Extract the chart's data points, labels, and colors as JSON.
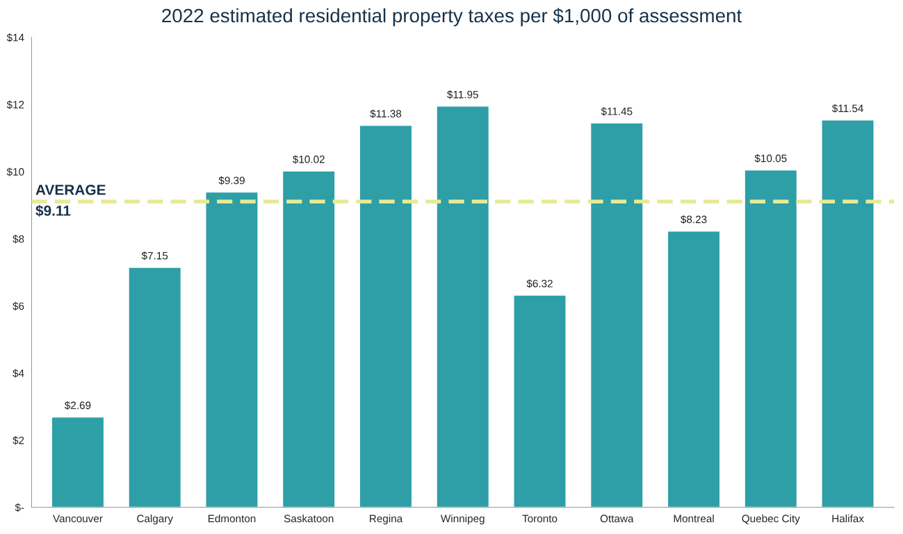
{
  "chart_data": {
    "type": "bar",
    "title": "2022 estimated residential property taxes per $1,000 of assessment",
    "categories": [
      "Vancouver",
      "Calgary",
      "Edmonton",
      "Saskatoon",
      "Regina",
      "Winnipeg",
      "Toronto",
      "Ottawa",
      "Montreal",
      "Quebec City",
      "Halifax"
    ],
    "values": [
      2.69,
      7.15,
      9.39,
      10.02,
      11.38,
      11.95,
      6.32,
      11.45,
      8.23,
      10.05,
      11.54
    ],
    "value_labels": [
      "$2.69",
      "$7.15",
      "$9.39",
      "$10.02",
      "$11.38",
      "$11.95",
      "$6.32",
      "$11.45",
      "$8.23",
      "$10.05",
      "$11.54"
    ],
    "color": "#2e9fa6",
    "ylim": [
      0,
      14
    ],
    "yticks": [
      {
        "value": 0,
        "label": "$-"
      },
      {
        "value": 2,
        "label": "$2"
      },
      {
        "value": 4,
        "label": "$4"
      },
      {
        "value": 6,
        "label": "$6"
      },
      {
        "value": 8,
        "label": "$8"
      },
      {
        "value": 10,
        "label": "$10"
      },
      {
        "value": 12,
        "label": "$12"
      },
      {
        "value": 14,
        "label": "$14"
      }
    ],
    "ref_lines": [
      {
        "axis": "y",
        "value": 9.11,
        "label": "AVERAGE\n$9.11",
        "color": "#e6ea96",
        "line_style": "dashed"
      }
    ],
    "grid": false,
    "legend": false
  }
}
